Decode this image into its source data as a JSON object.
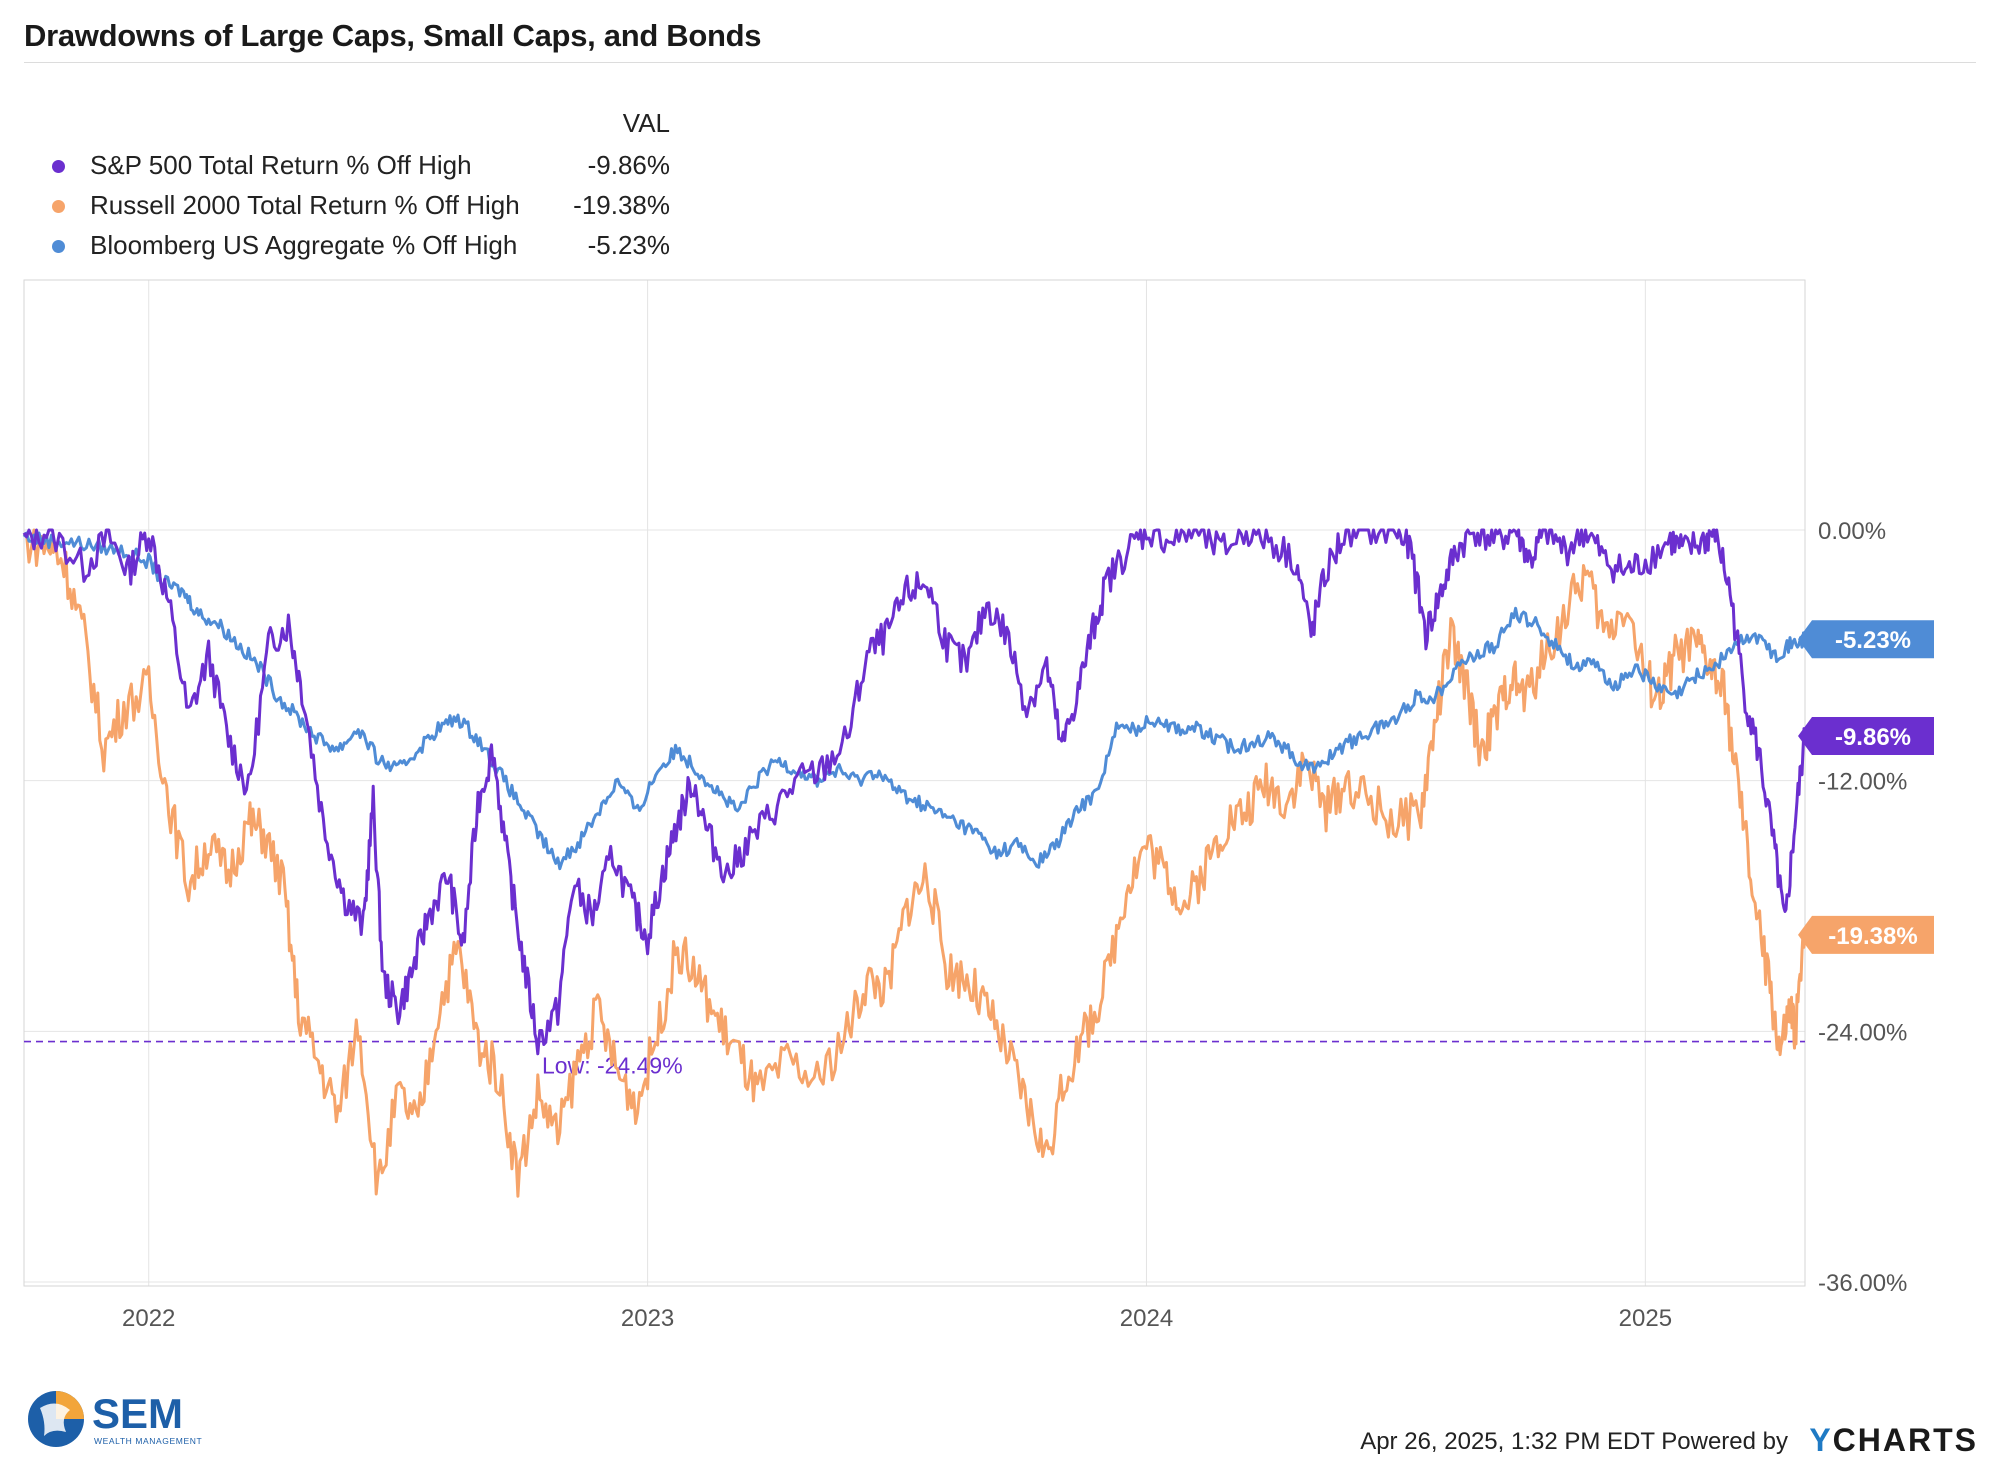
{
  "header": {
    "title": "Drawdowns of Large Caps, Small Caps, and Bonds"
  },
  "legend": {
    "col_header": "VAL",
    "items": [
      {
        "name": "S&P 500 Total Return % Off High",
        "value": "-9.86%",
        "color": "#6b2fcf"
      },
      {
        "name": "Russell 2000 Total Return % Off High",
        "value": "-19.38%",
        "color": "#f6a46a"
      },
      {
        "name": "Bloomberg US Aggregate % Off High",
        "value": "-5.23%",
        "color": "#4f8cd6"
      }
    ]
  },
  "footer": {
    "logo_text": "SEM",
    "logo_subtext": "WEALTH MANAGEMENT",
    "timestamp": "Apr 26, 2025, 1:32 PM EDT Powered by",
    "brand_y": "Y",
    "brand_rest": "CHARTS"
  },
  "chart_data": {
    "type": "line",
    "title": "Drawdowns of Large Caps, Small Caps, and Bonds",
    "x_range": [
      2021.75,
      2025.32
    ],
    "ylim": [
      -36,
      0
    ],
    "y_ticks": [
      0,
      -12,
      -24,
      -36
    ],
    "y_tick_labels": [
      "0.00%",
      "-12.00%",
      "-24.00%",
      "-36.00%"
    ],
    "x_ticks": [
      2022,
      2023,
      2024,
      2025
    ],
    "x_tick_labels": [
      "2022",
      "2023",
      "2024",
      "2025"
    ],
    "grid": true,
    "low_line": {
      "value": -24.49,
      "label": "Low: -24.49%",
      "color": "#6b2fcf"
    },
    "end_labels": [
      {
        "series": "Bloomberg US Aggregate % Off High",
        "label": "-5.23%",
        "value": -5.23
      },
      {
        "series": "S&P 500 Total Return % Off High",
        "label": "-9.86%",
        "value": -9.86
      },
      {
        "series": "Russell 2000 Total Return % Off High",
        "label": "-19.38%",
        "value": -19.38
      }
    ],
    "series": [
      {
        "name": "S&P 500 Total Return % Off High",
        "color": "#6b2fcf",
        "points": [
          [
            2021.75,
            -0.5
          ],
          [
            2021.8,
            0
          ],
          [
            2021.87,
            -1.8
          ],
          [
            2021.92,
            -0.3
          ],
          [
            2021.96,
            -2.0
          ],
          [
            2022.0,
            0
          ],
          [
            2022.04,
            -3.5
          ],
          [
            2022.08,
            -9.0
          ],
          [
            2022.12,
            -6.0
          ],
          [
            2022.16,
            -10.0
          ],
          [
            2022.2,
            -12.5
          ],
          [
            2022.24,
            -5.5
          ],
          [
            2022.28,
            -4.5
          ],
          [
            2022.31,
            -8.0
          ],
          [
            2022.35,
            -14.0
          ],
          [
            2022.39,
            -17.5
          ],
          [
            2022.43,
            -19.0
          ],
          [
            2022.45,
            -13.0
          ],
          [
            2022.47,
            -21.5
          ],
          [
            2022.5,
            -23.0
          ],
          [
            2022.53,
            -21.0
          ],
          [
            2022.56,
            -18.5
          ],
          [
            2022.6,
            -16.5
          ],
          [
            2022.63,
            -20.0
          ],
          [
            2022.66,
            -13.0
          ],
          [
            2022.69,
            -10.5
          ],
          [
            2022.72,
            -16.0
          ],
          [
            2022.75,
            -20.5
          ],
          [
            2022.78,
            -24.5
          ],
          [
            2022.82,
            -23.0
          ],
          [
            2022.85,
            -17.0
          ],
          [
            2022.89,
            -18.5
          ],
          [
            2022.93,
            -15.5
          ],
          [
            2022.97,
            -18.0
          ],
          [
            2023.0,
            -19.5
          ],
          [
            2023.03,
            -16.5
          ],
          [
            2023.06,
            -14.0
          ],
          [
            2023.09,
            -12.0
          ],
          [
            2023.12,
            -14.5
          ],
          [
            2023.16,
            -16.5
          ],
          [
            2023.2,
            -15.0
          ],
          [
            2023.25,
            -13.5
          ],
          [
            2023.3,
            -12.0
          ],
          [
            2023.35,
            -11.5
          ],
          [
            2023.4,
            -10.0
          ],
          [
            2023.44,
            -6.0
          ],
          [
            2023.48,
            -5.0
          ],
          [
            2023.52,
            -3.0
          ],
          [
            2023.56,
            -2.5
          ],
          [
            2023.6,
            -5.5
          ],
          [
            2023.64,
            -6.5
          ],
          [
            2023.68,
            -3.5
          ],
          [
            2023.72,
            -5.0
          ],
          [
            2023.76,
            -8.5
          ],
          [
            2023.8,
            -6.5
          ],
          [
            2023.83,
            -10.5
          ],
          [
            2023.86,
            -8.0
          ],
          [
            2023.89,
            -5.0
          ],
          [
            2023.92,
            -2.5
          ],
          [
            2023.96,
            -1.0
          ],
          [
            2024.0,
            0
          ],
          [
            2024.05,
            -0.5
          ],
          [
            2024.1,
            0
          ],
          [
            2024.15,
            -1.0
          ],
          [
            2024.2,
            0
          ],
          [
            2024.25,
            -0.5
          ],
          [
            2024.3,
            -1.5
          ],
          [
            2024.33,
            -5.0
          ],
          [
            2024.36,
            -2.0
          ],
          [
            2024.4,
            0
          ],
          [
            2024.45,
            0
          ],
          [
            2024.5,
            0
          ],
          [
            2024.53,
            -1.0
          ],
          [
            2024.56,
            -5.0
          ],
          [
            2024.59,
            -3.0
          ],
          [
            2024.62,
            -1.0
          ],
          [
            2024.66,
            0
          ],
          [
            2024.7,
            -0.5
          ],
          [
            2024.74,
            0
          ],
          [
            2024.77,
            -1.5
          ],
          [
            2024.8,
            0
          ],
          [
            2024.84,
            -1.0
          ],
          [
            2024.88,
            0
          ],
          [
            2024.92,
            -1.5
          ],
          [
            2024.96,
            -2.0
          ],
          [
            2025.0,
            -1.5
          ],
          [
            2025.05,
            -0.5
          ],
          [
            2025.08,
            -1.0
          ],
          [
            2025.12,
            -0.5
          ],
          [
            2025.14,
            0
          ],
          [
            2025.17,
            -3.0
          ],
          [
            2025.2,
            -8.0
          ],
          [
            2025.23,
            -11.0
          ],
          [
            2025.26,
            -15.5
          ],
          [
            2025.28,
            -19.0
          ],
          [
            2025.3,
            -14.0
          ],
          [
            2025.32,
            -9.86
          ]
        ]
      },
      {
        "name": "Russell 2000 Total Return % Off High",
        "color": "#f6a46a",
        "points": [
          [
            2021.75,
            -0.5
          ],
          [
            2021.8,
            -0.8
          ],
          [
            2021.83,
            -1.5
          ],
          [
            2021.87,
            -5.0
          ],
          [
            2021.91,
            -10.5
          ],
          [
            2021.95,
            -8.5
          ],
          [
            2022.0,
            -7.5
          ],
          [
            2022.04,
            -13.0
          ],
          [
            2022.08,
            -17.0
          ],
          [
            2022.12,
            -15.0
          ],
          [
            2022.16,
            -16.5
          ],
          [
            2022.2,
            -14.0
          ],
          [
            2022.23,
            -14.5
          ],
          [
            2022.27,
            -17.0
          ],
          [
            2022.3,
            -23.0
          ],
          [
            2022.34,
            -25.5
          ],
          [
            2022.38,
            -28.0
          ],
          [
            2022.42,
            -23.5
          ],
          [
            2022.46,
            -31.5
          ],
          [
            2022.5,
            -27.0
          ],
          [
            2022.54,
            -28.5
          ],
          [
            2022.58,
            -23.0
          ],
          [
            2022.62,
            -20.0
          ],
          [
            2022.66,
            -24.5
          ],
          [
            2022.7,
            -26.0
          ],
          [
            2022.74,
            -31.0
          ],
          [
            2022.78,
            -27.0
          ],
          [
            2022.82,
            -29.0
          ],
          [
            2022.86,
            -25.5
          ],
          [
            2022.9,
            -23.0
          ],
          [
            2022.94,
            -26.0
          ],
          [
            2022.98,
            -27.5
          ],
          [
            2023.02,
            -24.0
          ],
          [
            2023.06,
            -20.0
          ],
          [
            2023.1,
            -21.5
          ],
          [
            2023.14,
            -23.5
          ],
          [
            2023.18,
            -25.0
          ],
          [
            2023.22,
            -27.0
          ],
          [
            2023.28,
            -25.5
          ],
          [
            2023.34,
            -26.5
          ],
          [
            2023.4,
            -24.0
          ],
          [
            2023.44,
            -21.5
          ],
          [
            2023.48,
            -22.0
          ],
          [
            2023.52,
            -18.0
          ],
          [
            2023.56,
            -16.5
          ],
          [
            2023.6,
            -21.0
          ],
          [
            2023.64,
            -21.5
          ],
          [
            2023.68,
            -23.0
          ],
          [
            2023.72,
            -25.0
          ],
          [
            2023.76,
            -27.5
          ],
          [
            2023.8,
            -30.0
          ],
          [
            2023.84,
            -26.0
          ],
          [
            2023.88,
            -24.0
          ],
          [
            2023.92,
            -21.5
          ],
          [
            2023.96,
            -17.0
          ],
          [
            2024.0,
            -15.0
          ],
          [
            2024.04,
            -16.5
          ],
          [
            2024.08,
            -18.0
          ],
          [
            2024.12,
            -16.0
          ],
          [
            2024.16,
            -14.0
          ],
          [
            2024.2,
            -13.5
          ],
          [
            2024.24,
            -12.0
          ],
          [
            2024.28,
            -13.0
          ],
          [
            2024.32,
            -11.0
          ],
          [
            2024.36,
            -13.5
          ],
          [
            2024.4,
            -12.0
          ],
          [
            2024.45,
            -13.0
          ],
          [
            2024.5,
            -14.0
          ],
          [
            2024.55,
            -13.5
          ],
          [
            2024.58,
            -9.0
          ],
          [
            2024.61,
            -5.0
          ],
          [
            2024.64,
            -7.5
          ],
          [
            2024.67,
            -10.5
          ],
          [
            2024.7,
            -9.0
          ],
          [
            2024.73,
            -7.0
          ],
          [
            2024.76,
            -8.0
          ],
          [
            2024.8,
            -6.0
          ],
          [
            2024.84,
            -4.0
          ],
          [
            2024.88,
            -2.0
          ],
          [
            2024.92,
            -5.0
          ],
          [
            2024.96,
            -3.5
          ],
          [
            2025.0,
            -7.0
          ],
          [
            2025.03,
            -8.0
          ],
          [
            2025.06,
            -6.0
          ],
          [
            2025.1,
            -5.5
          ],
          [
            2025.13,
            -6.5
          ],
          [
            2025.16,
            -8.0
          ],
          [
            2025.19,
            -13.0
          ],
          [
            2025.22,
            -18.0
          ],
          [
            2025.25,
            -22.0
          ],
          [
            2025.27,
            -25.0
          ],
          [
            2025.29,
            -23.0
          ],
          [
            2025.3,
            -24.0
          ],
          [
            2025.32,
            -19.38
          ]
        ]
      },
      {
        "name": "Bloomberg US Aggregate % Off High",
        "color": "#4f8cd6",
        "points": [
          [
            2021.75,
            -0.3
          ],
          [
            2021.8,
            -0.5
          ],
          [
            2021.85,
            -0.6
          ],
          [
            2021.9,
            -0.8
          ],
          [
            2021.95,
            -1.0
          ],
          [
            2022.0,
            -1.5
          ],
          [
            2022.03,
            -2.5
          ],
          [
            2022.07,
            -3.0
          ],
          [
            2022.1,
            -4.0
          ],
          [
            2022.14,
            -4.5
          ],
          [
            2022.18,
            -5.5
          ],
          [
            2022.22,
            -6.5
          ],
          [
            2022.26,
            -8.0
          ],
          [
            2022.3,
            -9.0
          ],
          [
            2022.34,
            -10.0
          ],
          [
            2022.38,
            -10.5
          ],
          [
            2022.42,
            -9.5
          ],
          [
            2022.46,
            -11.0
          ],
          [
            2022.5,
            -11.5
          ],
          [
            2022.54,
            -10.5
          ],
          [
            2022.58,
            -9.5
          ],
          [
            2022.62,
            -9.0
          ],
          [
            2022.66,
            -10.0
          ],
          [
            2022.7,
            -11.5
          ],
          [
            2022.74,
            -13.0
          ],
          [
            2022.78,
            -14.5
          ],
          [
            2022.82,
            -16.0
          ],
          [
            2022.86,
            -15.0
          ],
          [
            2022.9,
            -13.5
          ],
          [
            2022.94,
            -12.0
          ],
          [
            2022.98,
            -13.5
          ],
          [
            2023.02,
            -11.5
          ],
          [
            2023.06,
            -10.5
          ],
          [
            2023.1,
            -11.5
          ],
          [
            2023.14,
            -12.5
          ],
          [
            2023.18,
            -13.5
          ],
          [
            2023.22,
            -12.0
          ],
          [
            2023.26,
            -11.0
          ],
          [
            2023.3,
            -11.5
          ],
          [
            2023.34,
            -12.0
          ],
          [
            2023.38,
            -11.5
          ],
          [
            2023.42,
            -12.0
          ],
          [
            2023.46,
            -11.5
          ],
          [
            2023.5,
            -12.5
          ],
          [
            2023.54,
            -13.0
          ],
          [
            2023.58,
            -13.5
          ],
          [
            2023.62,
            -14.0
          ],
          [
            2023.66,
            -14.5
          ],
          [
            2023.7,
            -15.5
          ],
          [
            2023.74,
            -15.0
          ],
          [
            2023.78,
            -16.0
          ],
          [
            2023.82,
            -15.0
          ],
          [
            2023.86,
            -13.5
          ],
          [
            2023.9,
            -12.5
          ],
          [
            2023.94,
            -9.5
          ],
          [
            2023.98,
            -9.5
          ],
          [
            2024.02,
            -9.0
          ],
          [
            2024.06,
            -9.5
          ],
          [
            2024.1,
            -9.5
          ],
          [
            2024.14,
            -10.0
          ],
          [
            2024.18,
            -10.5
          ],
          [
            2024.22,
            -10.0
          ],
          [
            2024.26,
            -10.0
          ],
          [
            2024.3,
            -11.0
          ],
          [
            2024.34,
            -11.5
          ],
          [
            2024.38,
            -10.5
          ],
          [
            2024.42,
            -10.0
          ],
          [
            2024.46,
            -9.5
          ],
          [
            2024.5,
            -9.0
          ],
          [
            2024.54,
            -8.0
          ],
          [
            2024.58,
            -8.0
          ],
          [
            2024.62,
            -6.5
          ],
          [
            2024.66,
            -6.0
          ],
          [
            2024.7,
            -5.5
          ],
          [
            2024.74,
            -4.0
          ],
          [
            2024.78,
            -4.5
          ],
          [
            2024.82,
            -5.5
          ],
          [
            2024.86,
            -6.5
          ],
          [
            2024.9,
            -6.5
          ],
          [
            2024.94,
            -7.5
          ],
          [
            2024.98,
            -6.5
          ],
          [
            2025.02,
            -7.5
          ],
          [
            2025.06,
            -8.0
          ],
          [
            2025.1,
            -7.0
          ],
          [
            2025.14,
            -6.5
          ],
          [
            2025.18,
            -5.5
          ],
          [
            2025.22,
            -5.0
          ],
          [
            2025.26,
            -6.0
          ],
          [
            2025.29,
            -5.5
          ],
          [
            2025.32,
            -5.23
          ]
        ]
      }
    ]
  }
}
